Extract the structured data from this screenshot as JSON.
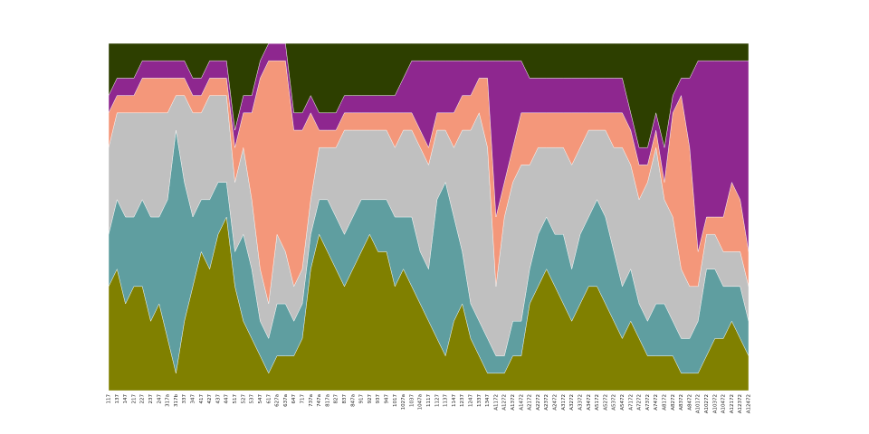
{
  "chart_data": {
    "type": "stacked_area",
    "categories": [
      "117",
      "137",
      "147",
      "217",
      "227",
      "237",
      "247",
      "317a",
      "317b",
      "337",
      "347",
      "417",
      "427",
      "437",
      "447",
      "517",
      "527",
      "537",
      "547",
      "617",
      "627a",
      "637a",
      "647",
      "717",
      "737a",
      "747a",
      "817a",
      "827",
      "837",
      "847a",
      "917",
      "927",
      "937",
      "947",
      "1017",
      "1027a",
      "1037",
      "1047a",
      "1117",
      "1127",
      "1137",
      "1147",
      "1237",
      "1247",
      "1337",
      "1347",
      "A1172",
      "A1272",
      "A1372",
      "A1472",
      "A2172",
      "A2272",
      "A2372",
      "A2472",
      "A3172",
      "A3272",
      "A3372",
      "A3472",
      "A5172",
      "A5272",
      "A5372",
      "A5472",
      "A7172",
      "A7272",
      "A7372",
      "A7472",
      "A8172",
      "A8272",
      "A8372",
      "A8472",
      "A10172",
      "A10272",
      "A10372",
      "A10472",
      "A12172",
      "A12372",
      "A12472"
    ],
    "ylim": [
      0,
      100
    ],
    "series": [
      {
        "color": "#808000",
        "values": [
          30,
          35,
          25,
          30,
          30,
          20,
          25,
          15,
          5,
          20,
          30,
          40,
          35,
          45,
          50,
          30,
          20,
          15,
          10,
          5,
          10,
          10,
          10,
          15,
          35,
          45,
          40,
          35,
          30,
          35,
          40,
          45,
          40,
          40,
          30,
          35,
          30,
          25,
          20,
          15,
          10,
          20,
          25,
          15,
          10,
          5,
          5,
          5,
          10,
          10,
          25,
          30,
          35,
          30,
          25,
          20,
          25,
          30,
          30,
          25,
          20,
          15,
          20,
          15,
          10,
          10,
          10,
          10,
          5,
          5,
          5,
          10,
          15,
          15,
          20,
          15,
          10
        ]
      },
      {
        "color": "#5f9ea0",
        "values": [
          15,
          20,
          25,
          20,
          25,
          30,
          25,
          40,
          70,
          40,
          20,
          15,
          20,
          15,
          10,
          10,
          25,
          20,
          10,
          10,
          15,
          15,
          10,
          10,
          10,
          10,
          15,
          15,
          15,
          15,
          15,
          10,
          15,
          15,
          20,
          15,
          20,
          15,
          15,
          40,
          50,
          30,
          15,
          10,
          10,
          10,
          5,
          5,
          10,
          10,
          10,
          15,
          15,
          15,
          20,
          15,
          20,
          20,
          25,
          25,
          20,
          15,
          15,
          10,
          10,
          15,
          15,
          10,
          10,
          10,
          15,
          25,
          20,
          15,
          10,
          15,
          10
        ]
      },
      {
        "color": "#c0c0c0",
        "values": [
          25,
          25,
          30,
          30,
          25,
          30,
          30,
          25,
          10,
          25,
          30,
          25,
          30,
          25,
          25,
          20,
          25,
          20,
          15,
          10,
          20,
          15,
          10,
          10,
          10,
          15,
          15,
          20,
          30,
          25,
          20,
          20,
          20,
          20,
          20,
          25,
          25,
          30,
          30,
          20,
          15,
          20,
          35,
          50,
          60,
          55,
          20,
          40,
          40,
          45,
          30,
          25,
          20,
          25,
          25,
          30,
          25,
          25,
          20,
          25,
          30,
          40,
          30,
          30,
          40,
          45,
          30,
          30,
          20,
          15,
          10,
          10,
          10,
          10,
          10,
          10,
          10
        ]
      },
      {
        "color": "#f4977a",
        "values": [
          10,
          5,
          5,
          5,
          10,
          10,
          10,
          10,
          5,
          5,
          5,
          5,
          5,
          5,
          5,
          10,
          10,
          25,
          55,
          70,
          50,
          55,
          45,
          40,
          25,
          5,
          5,
          5,
          5,
          5,
          5,
          5,
          5,
          5,
          10,
          5,
          5,
          5,
          5,
          5,
          5,
          10,
          10,
          10,
          10,
          20,
          20,
          10,
          10,
          15,
          15,
          10,
          10,
          10,
          10,
          15,
          10,
          5,
          5,
          5,
          10,
          10,
          10,
          10,
          5,
          5,
          5,
          30,
          50,
          40,
          10,
          5,
          5,
          10,
          20,
          15,
          10
        ]
      },
      {
        "color": "#8e278f",
        "values": [
          5,
          5,
          5,
          5,
          5,
          5,
          5,
          5,
          5,
          5,
          5,
          5,
          5,
          5,
          5,
          5,
          5,
          5,
          5,
          5,
          5,
          5,
          5,
          5,
          5,
          5,
          5,
          5,
          5,
          5,
          5,
          5,
          5,
          5,
          5,
          10,
          15,
          20,
          25,
          15,
          15,
          15,
          10,
          10,
          5,
          5,
          45,
          35,
          25,
          15,
          10,
          10,
          10,
          10,
          10,
          10,
          10,
          10,
          10,
          10,
          10,
          10,
          5,
          5,
          5,
          5,
          10,
          5,
          5,
          20,
          55,
          45,
          45,
          45,
          35,
          40,
          55
        ]
      },
      {
        "color": "#2d3f00",
        "values": [
          15,
          10,
          10,
          10,
          5,
          5,
          5,
          5,
          5,
          5,
          10,
          10,
          5,
          5,
          5,
          25,
          15,
          15,
          5,
          0,
          0,
          0,
          20,
          20,
          15,
          20,
          20,
          20,
          15,
          15,
          15,
          15,
          15,
          15,
          15,
          10,
          5,
          5,
          5,
          5,
          5,
          5,
          5,
          5,
          5,
          5,
          5,
          5,
          5,
          5,
          10,
          10,
          10,
          10,
          10,
          10,
          10,
          10,
          10,
          10,
          10,
          10,
          20,
          30,
          30,
          20,
          30,
          15,
          10,
          10,
          5,
          5,
          5,
          5,
          5,
          5,
          5
        ]
      }
    ]
  }
}
